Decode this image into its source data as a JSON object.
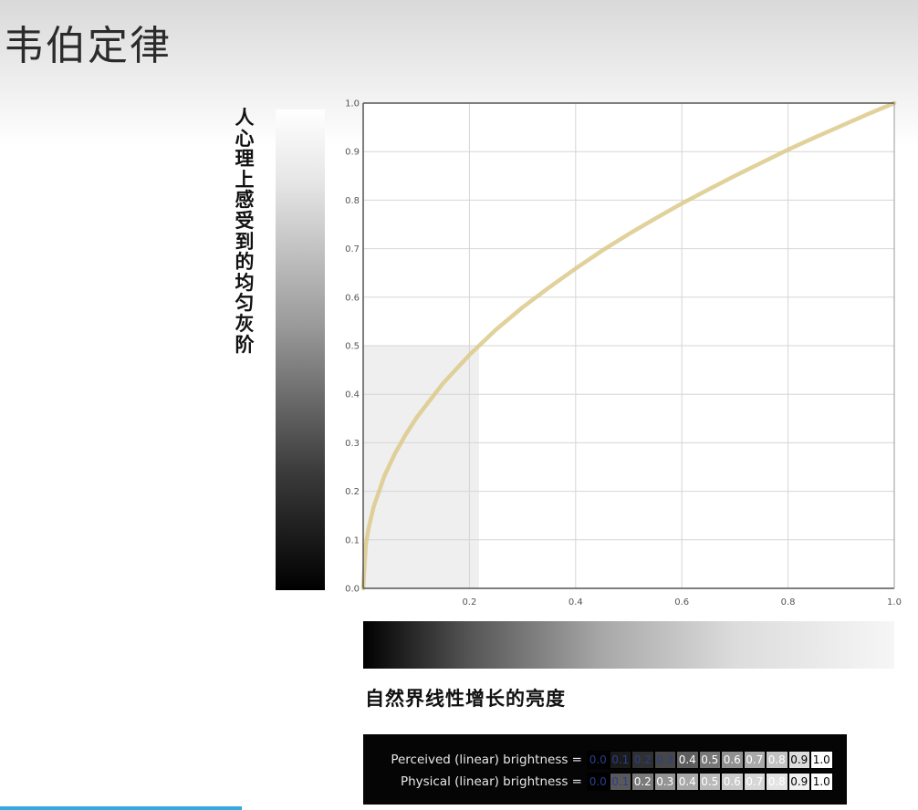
{
  "slide": {
    "title": "韦伯定律"
  },
  "left_bar": {
    "label": "人心理上感受到的均匀灰阶"
  },
  "bottom_bar": {
    "label": "自然界线性增长的亮度"
  },
  "chart_data": {
    "type": "line",
    "xlim": [
      0,
      1.0
    ],
    "ylim": [
      0,
      1.0
    ],
    "x_ticks": [
      "0.2",
      "0.4",
      "0.6",
      "0.8",
      "1.0"
    ],
    "y_ticks": [
      "0.0",
      "0.1",
      "0.2",
      "0.3",
      "0.4",
      "0.5",
      "0.6",
      "0.7",
      "0.8",
      "0.9",
      "1.0"
    ],
    "grid": true,
    "series": [
      {
        "color": "#dcc98a",
        "x": [
          0,
          0.005,
          0.01,
          0.02,
          0.04,
          0.06,
          0.08,
          0.1,
          0.15,
          0.2,
          0.25,
          0.3,
          0.35,
          0.4,
          0.45,
          0.5,
          0.55,
          0.6,
          0.65,
          0.7,
          0.75,
          0.8,
          0.85,
          0.9,
          0.95,
          1.0
        ],
        "y": [
          0,
          0.09,
          0.123,
          0.169,
          0.232,
          0.278,
          0.317,
          0.351,
          0.422,
          0.481,
          0.533,
          0.579,
          0.62,
          0.659,
          0.696,
          0.73,
          0.762,
          0.793,
          0.822,
          0.85,
          0.877,
          0.904,
          0.929,
          0.953,
          0.977,
          1.0
        ]
      }
    ],
    "highlight": {
      "x_range": [
        0,
        0.218
      ],
      "y_range": [
        0,
        0.5
      ],
      "color": "#efefef"
    }
  },
  "legend": {
    "perceived_label": "Perceived (linear) brightness =",
    "physical_label": "Physical (linear) brightness =",
    "perceived_cells": [
      {
        "text": "0.0",
        "bg": "#000000",
        "fg": "#2a3f8a"
      },
      {
        "text": "0.1",
        "bg": "#1b1b1b",
        "fg": "#2a3f8a"
      },
      {
        "text": "0.2",
        "bg": "#303030",
        "fg": "#2a3f8a"
      },
      {
        "text": "0.3",
        "bg": "#474747",
        "fg": "#2a3f8a"
      },
      {
        "text": "0.4",
        "bg": "#5e5e5e",
        "fg": "#ffffff"
      },
      {
        "text": "0.5",
        "bg": "#777777",
        "fg": "#ffffff"
      },
      {
        "text": "0.6",
        "bg": "#909090",
        "fg": "#ffffff"
      },
      {
        "text": "0.7",
        "bg": "#a9a9a9",
        "fg": "#ffffff"
      },
      {
        "text": "0.8",
        "bg": "#c2c2c2",
        "fg": "#ffffff"
      },
      {
        "text": "0.9",
        "bg": "#dcdcdc",
        "fg": "#000000"
      },
      {
        "text": "1.0",
        "bg": "#ffffff",
        "fg": "#000000"
      }
    ],
    "physical_cells": [
      {
        "text": "0.0",
        "bg": "#000000",
        "fg": "#2a3f8a"
      },
      {
        "text": "0.1",
        "bg": "#595959",
        "fg": "#2a3f8a"
      },
      {
        "text": "0.2",
        "bg": "#7a7a7a",
        "fg": "#ffffff"
      },
      {
        "text": "0.3",
        "bg": "#939393",
        "fg": "#ffffff"
      },
      {
        "text": "0.4",
        "bg": "#a8a8a8",
        "fg": "#ffffff"
      },
      {
        "text": "0.5",
        "bg": "#b9b9b9",
        "fg": "#ffffff"
      },
      {
        "text": "0.6",
        "bg": "#c9c9c9",
        "fg": "#ffffff"
      },
      {
        "text": "0.7",
        "bg": "#d7d7d7",
        "fg": "#ffffff"
      },
      {
        "text": "0.8",
        "bg": "#e4e4e4",
        "fg": "#ffffff"
      },
      {
        "text": "0.9",
        "bg": "#f1f1f1",
        "fg": "#000000"
      },
      {
        "text": "1.0",
        "bg": "#ffffff",
        "fg": "#000000"
      }
    ]
  }
}
